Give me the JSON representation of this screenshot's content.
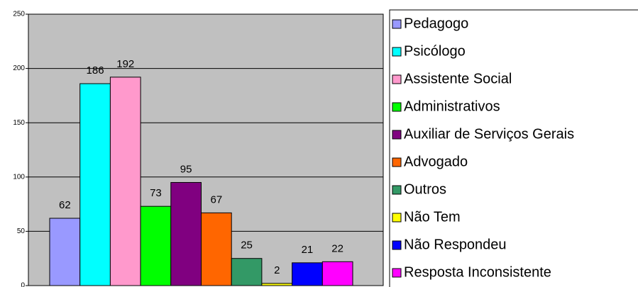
{
  "chart_data": {
    "type": "bar",
    "categories": [
      "Pedagogo",
      "Psicólogo",
      "Assistente Social",
      "Administrativos",
      "Auxiliar de Serviços Gerais",
      "Advogado",
      "Outros",
      "Não Tem",
      "Não Respondeu",
      "Resposta Inconsistente"
    ],
    "values": [
      62,
      186,
      192,
      73,
      95,
      67,
      25,
      2,
      21,
      22
    ],
    "colors": [
      "#9999ff",
      "#00ffff",
      "#ff99cc",
      "#00ff00",
      "#800080",
      "#ff6600",
      "#339966",
      "#ffff00",
      "#0000ff",
      "#ff00ff"
    ],
    "ylim": [
      0,
      250
    ],
    "yticks": [
      0,
      50,
      100,
      150,
      200,
      250
    ],
    "grid": true,
    "legend": "right"
  }
}
